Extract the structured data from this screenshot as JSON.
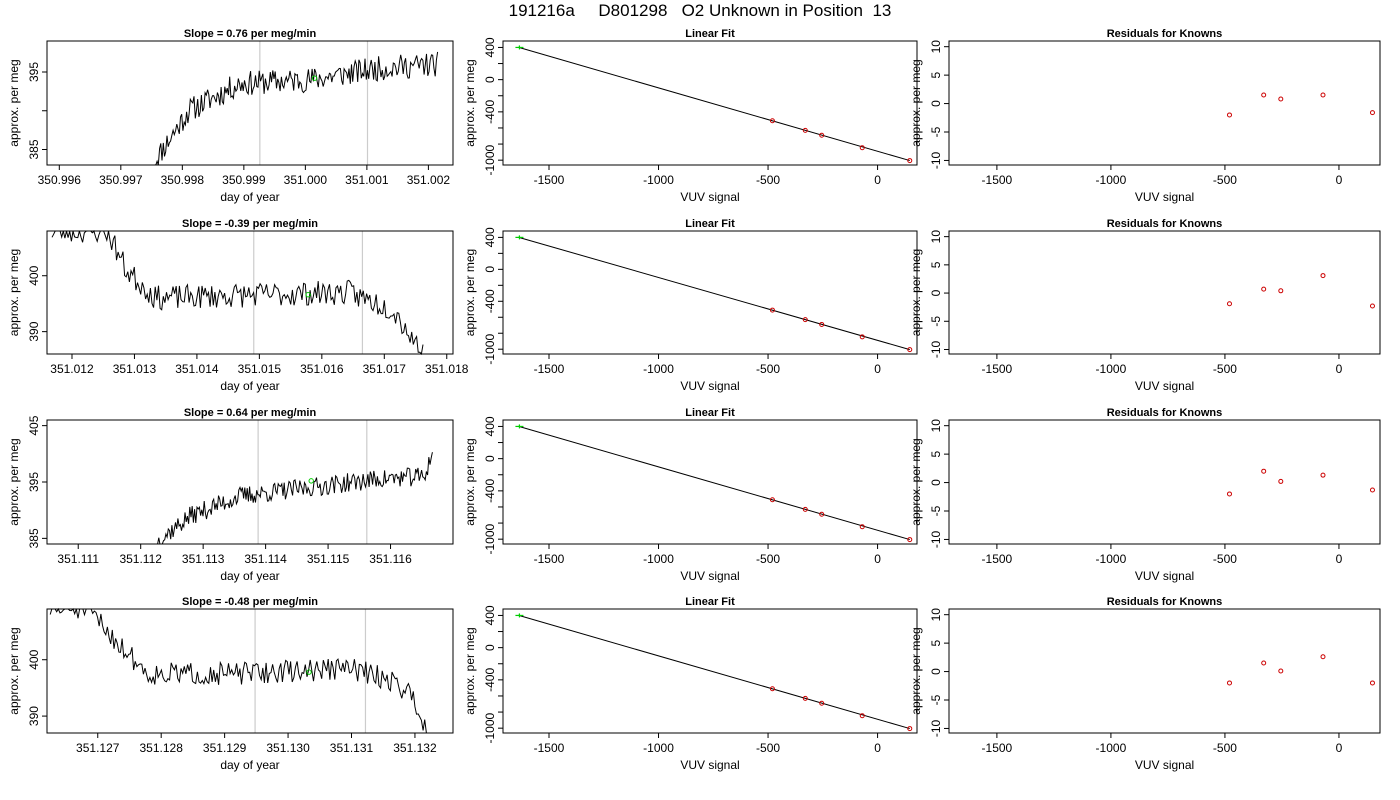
{
  "page_title": "191216a     D801298   O2 Unknown in Position  13",
  "colors": {
    "trace": "#000000",
    "grid_line": "#cccccc",
    "unknown_point": "#00cc00",
    "known_point": "#cc0000",
    "fit_line": "#000000"
  },
  "chart_data": [
    {
      "type": "line",
      "row": 0,
      "title": "Slope =  0.76  per meg/min",
      "xlabel": "day of year",
      "ylabel": "approx. per meg",
      "xlim": [
        350.9958,
        351.0024
      ],
      "ylim": [
        383,
        399
      ],
      "xticks": [
        350.996,
        350.997,
        350.998,
        350.999,
        351.0,
        351.001,
        351.002
      ],
      "xtick_labels": [
        "350.996",
        "350.997",
        "350.998",
        "350.999",
        "351.000",
        "351.001",
        "351.002"
      ],
      "yticks": [
        385,
        390,
        395
      ],
      "ytick_labels": [
        "385",
        "",
        "395"
      ],
      "vlines": [
        350.99926,
        351.00101
      ],
      "trace_start_x": 350.99755,
      "trace_end_x": 351.00215,
      "trace_levels": [
        [
          0,
          383.5
        ],
        [
          0.12,
          390
        ],
        [
          0.3,
          393.5
        ],
        [
          0.55,
          394
        ],
        [
          0.8,
          395.5
        ],
        [
          1,
          396
        ]
      ],
      "trace_noise": 1.6,
      "trace_seed": 11,
      "marker": {
        "x": 351.00015,
        "y": 394.2
      }
    },
    {
      "type": "line",
      "row": 1,
      "title": "Slope =  -0.39  per meg/min",
      "xlabel": "day of year",
      "ylabel": "approx. per meg",
      "xlim": [
        351.0116,
        351.0181
      ],
      "ylim": [
        386,
        408
      ],
      "xticks": [
        351.012,
        351.013,
        351.014,
        351.015,
        351.016,
        351.017,
        351.018
      ],
      "xtick_labels": [
        "351.012",
        "351.013",
        "351.014",
        "351.015",
        "351.016",
        "351.017",
        "351.018"
      ],
      "yticks": [
        390,
        400
      ],
      "ytick_labels": [
        "390",
        "400"
      ],
      "vlines": [
        351.01491,
        351.01665
      ],
      "trace_start_x": 351.01168,
      "trace_end_x": 351.01762,
      "trace_levels": [
        [
          0,
          408
        ],
        [
          0.15,
          408
        ],
        [
          0.2,
          401
        ],
        [
          0.28,
          396
        ],
        [
          0.5,
          396.5
        ],
        [
          0.8,
          397
        ],
        [
          0.92,
          394
        ],
        [
          0.96,
          390
        ],
        [
          1,
          386
        ]
      ],
      "trace_noise": 2.2,
      "trace_seed": 23,
      "marker": {
        "x": 351.01578,
        "y": 396.6
      }
    },
    {
      "type": "line",
      "row": 2,
      "title": "Slope =  0.64  per meg/min",
      "xlabel": "day of year",
      "ylabel": "approx. per meg",
      "xlim": [
        351.1105,
        351.117
      ],
      "ylim": [
        384,
        406
      ],
      "xticks": [
        351.111,
        351.112,
        351.113,
        351.114,
        351.115,
        351.116
      ],
      "xtick_labels": [
        "351.111",
        "351.112",
        "351.113",
        "351.114",
        "351.115",
        "351.116"
      ],
      "yticks": [
        385,
        395,
        405
      ],
      "ytick_labels": [
        "385",
        "395",
        "405"
      ],
      "vlines": [
        351.11388,
        351.11562
      ],
      "trace_start_x": 351.11227,
      "trace_end_x": 351.11667,
      "trace_levels": [
        [
          0,
          384.5
        ],
        [
          0.12,
          389
        ],
        [
          0.3,
          392.5
        ],
        [
          0.55,
          394
        ],
        [
          0.8,
          395.5
        ],
        [
          0.97,
          396
        ],
        [
          1,
          400
        ]
      ],
      "trace_noise": 1.7,
      "trace_seed": 37,
      "marker": {
        "x": 351.11473,
        "y": 395.2
      }
    },
    {
      "type": "line",
      "row": 3,
      "title": "Slope =  -0.48  per meg/min",
      "xlabel": "day of year",
      "ylabel": "approx. per meg",
      "xlim": [
        351.1262,
        351.1326
      ],
      "ylim": [
        387,
        409
      ],
      "xticks": [
        351.127,
        351.128,
        351.129,
        351.13,
        351.131,
        351.132
      ],
      "xtick_labels": [
        "351.127",
        "351.128",
        "351.129",
        "351.130",
        "351.131",
        "351.132"
      ],
      "yticks": [
        390,
        400
      ],
      "ytick_labels": [
        "390",
        "400"
      ],
      "vlines": [
        351.12948,
        351.13122
      ],
      "trace_start_x": 351.12625,
      "trace_end_x": 351.13218,
      "trace_levels": [
        [
          0,
          409
        ],
        [
          0.1,
          409
        ],
        [
          0.18,
          403
        ],
        [
          0.26,
          397.5
        ],
        [
          0.5,
          397.5
        ],
        [
          0.8,
          398.5
        ],
        [
          0.92,
          396
        ],
        [
          0.97,
          393
        ],
        [
          1,
          387
        ]
      ],
      "trace_noise": 2.0,
      "trace_seed": 51,
      "marker": {
        "x": 351.13033,
        "y": 397.8
      }
    },
    {
      "type": "scatter",
      "row": 0,
      "title": "Linear Fit",
      "xlabel": "VUV signal",
      "ylabel": "approx. per meg",
      "xlim": [
        -1710,
        180
      ],
      "ylim": [
        -1060,
        480
      ],
      "xticks": [
        -1500,
        -1000,
        -500,
        0
      ],
      "xtick_labels": [
        "-1500",
        "-1000",
        "-500",
        "0"
      ],
      "yticks": [
        -1000,
        -800,
        -600,
        -400,
        -200,
        0,
        200,
        400
      ],
      "ytick_labels": [
        "-1000",
        "",
        "",
        "-400",
        "",
        "0",
        "",
        "400"
      ],
      "fit_line": {
        "x": [
          -1640,
          147
        ],
        "y": [
          402,
          -1005
        ]
      },
      "knowns": {
        "x": [
          -480,
          -330,
          -255,
          -70,
          147
        ],
        "y": [
          -510,
          -630,
          -690,
          -845,
          -1005
        ]
      },
      "unknown": {
        "x": -1635,
        "y": 400
      }
    },
    {
      "type": "scatter",
      "row": 1,
      "title": "Linear Fit",
      "xlabel": "VUV signal",
      "ylabel": "approx. per meg",
      "xlim": [
        -1710,
        180
      ],
      "ylim": [
        -1060,
        480
      ],
      "xticks": [
        -1500,
        -1000,
        -500,
        0
      ],
      "xtick_labels": [
        "-1500",
        "-1000",
        "-500",
        "0"
      ],
      "yticks": [
        -1000,
        -800,
        -600,
        -400,
        -200,
        0,
        200,
        400
      ],
      "ytick_labels": [
        "-1000",
        "",
        "",
        "-400",
        "",
        "0",
        "",
        "400"
      ],
      "fit_line": {
        "x": [
          -1640,
          147
        ],
        "y": [
          402,
          -1005
        ]
      },
      "knowns": {
        "x": [
          -480,
          -330,
          -255,
          -70,
          147
        ],
        "y": [
          -510,
          -630,
          -690,
          -845,
          -1005
        ]
      },
      "unknown": {
        "x": -1635,
        "y": 400
      }
    },
    {
      "type": "scatter",
      "row": 2,
      "title": "Linear Fit",
      "xlabel": "VUV signal",
      "ylabel": "approx. per meg",
      "xlim": [
        -1710,
        180
      ],
      "ylim": [
        -1060,
        480
      ],
      "xticks": [
        -1500,
        -1000,
        -500,
        0
      ],
      "xtick_labels": [
        "-1500",
        "-1000",
        "-500",
        "0"
      ],
      "yticks": [
        -1000,
        -800,
        -600,
        -400,
        -200,
        0,
        200,
        400
      ],
      "ytick_labels": [
        "-1000",
        "",
        "",
        "-400",
        "",
        "0",
        "",
        "400"
      ],
      "fit_line": {
        "x": [
          -1640,
          147
        ],
        "y": [
          402,
          -1005
        ]
      },
      "knowns": {
        "x": [
          -480,
          -330,
          -255,
          -70,
          147
        ],
        "y": [
          -510,
          -630,
          -690,
          -845,
          -1005
        ]
      },
      "unknown": {
        "x": -1635,
        "y": 400
      }
    },
    {
      "type": "scatter",
      "row": 3,
      "title": "Linear Fit",
      "xlabel": "VUV signal",
      "ylabel": "approx. per meg",
      "xlim": [
        -1710,
        180
      ],
      "ylim": [
        -1060,
        480
      ],
      "xticks": [
        -1500,
        -1000,
        -500,
        0
      ],
      "xtick_labels": [
        "-1500",
        "-1000",
        "-500",
        "0"
      ],
      "yticks": [
        -1000,
        -800,
        -600,
        -400,
        -200,
        0,
        200,
        400
      ],
      "ytick_labels": [
        "-1000",
        "",
        "",
        "-400",
        "",
        "0",
        "",
        "400"
      ],
      "fit_line": {
        "x": [
          -1640,
          147
        ],
        "y": [
          402,
          -1005
        ]
      },
      "knowns": {
        "x": [
          -480,
          -330,
          -255,
          -70,
          147
        ],
        "y": [
          -510,
          -630,
          -690,
          -845,
          -1005
        ]
      },
      "unknown": {
        "x": -1635,
        "y": 400
      }
    },
    {
      "type": "scatter",
      "row": 0,
      "title": "Residuals for Knowns",
      "xlabel": "VUV signal",
      "ylabel": "approx. per meg",
      "xlim": [
        -1710,
        180
      ],
      "ylim": [
        -10.8,
        11
      ],
      "xticks": [
        -1500,
        -1000,
        -500,
        0
      ],
      "xtick_labels": [
        "-1500",
        "-1000",
        "-500",
        "0"
      ],
      "yticks": [
        -10,
        -5,
        0,
        5,
        10
      ],
      "ytick_labels": [
        "-10",
        "-5",
        "0",
        "5",
        "10"
      ],
      "points": {
        "x": [
          -480,
          -330,
          -255,
          -70,
          147
        ],
        "y": [
          -2.0,
          1.5,
          0.8,
          1.5,
          -1.6
        ]
      }
    },
    {
      "type": "scatter",
      "row": 1,
      "title": "Residuals for Knowns",
      "xlabel": "VUV signal",
      "ylabel": "approx. per meg",
      "xlim": [
        -1710,
        180
      ],
      "ylim": [
        -10.8,
        11
      ],
      "xticks": [
        -1500,
        -1000,
        -500,
        0
      ],
      "xtick_labels": [
        "-1500",
        "-1000",
        "-500",
        "0"
      ],
      "yticks": [
        -10,
        -5,
        0,
        5,
        10
      ],
      "ytick_labels": [
        "-10",
        "-5",
        "0",
        "5",
        "10"
      ],
      "points": {
        "x": [
          -480,
          -330,
          -255,
          -70,
          147
        ],
        "y": [
          -1.9,
          0.7,
          0.4,
          3.1,
          -2.3
        ]
      }
    },
    {
      "type": "scatter",
      "row": 2,
      "title": "Residuals for Knowns",
      "xlabel": "VUV signal",
      "ylabel": "approx. per meg",
      "xlim": [
        -1710,
        180
      ],
      "ylim": [
        -10.8,
        11
      ],
      "xticks": [
        -1500,
        -1000,
        -500,
        0
      ],
      "xtick_labels": [
        "-1500",
        "-1000",
        "-500",
        "0"
      ],
      "yticks": [
        -10,
        -5,
        0,
        5,
        10
      ],
      "ytick_labels": [
        "-10",
        "-5",
        "0",
        "5",
        "10"
      ],
      "points": {
        "x": [
          -480,
          -330,
          -255,
          -70,
          147
        ],
        "y": [
          -2.0,
          2.0,
          0.2,
          1.3,
          -1.3
        ]
      }
    },
    {
      "type": "scatter",
      "row": 3,
      "title": "Residuals for Knowns",
      "xlabel": "VUV signal",
      "ylabel": "approx. per meg",
      "xlim": [
        -1710,
        180
      ],
      "ylim": [
        -10.8,
        11
      ],
      "xticks": [
        -1500,
        -1000,
        -500,
        0
      ],
      "xtick_labels": [
        "-1500",
        "-1000",
        "-500",
        "0"
      ],
      "yticks": [
        -10,
        -5,
        0,
        5,
        10
      ],
      "ytick_labels": [
        "-10",
        "-5",
        "0",
        "5",
        "10"
      ],
      "points": {
        "x": [
          -480,
          -330,
          -255,
          -70,
          147
        ],
        "y": [
          -2.0,
          1.5,
          0.1,
          2.6,
          -2.0
        ]
      }
    }
  ]
}
